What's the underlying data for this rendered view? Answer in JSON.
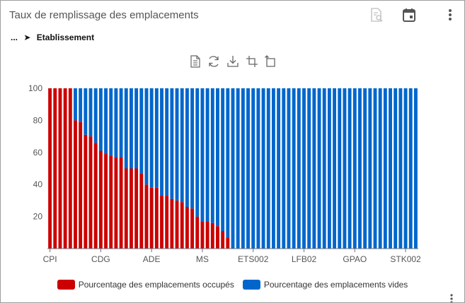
{
  "header": {
    "title": "Taux de remplissage des emplacements",
    "icons": [
      "search-doc-icon",
      "calendar-icon",
      "more-vert-icon"
    ]
  },
  "breadcrumb": {
    "ellipsis": "...",
    "arrow": "➤",
    "current": "Etablissement"
  },
  "toolbox": [
    "data-view-icon",
    "restore-icon",
    "save-image-icon",
    "zoom-icon",
    "zoom-reset-icon"
  ],
  "colors": {
    "occupied": "#cc0000",
    "empty": "#0066cc",
    "disabled_icon": "#c8c8c8",
    "icon": "#555555"
  },
  "legend": {
    "occupied": "Pourcentage des emplacements occupés",
    "empty": "Pourcentage des emplacements vides"
  },
  "chart_data": {
    "type": "bar",
    "stacked": true,
    "ylim": [
      0,
      100
    ],
    "yticks": [
      20,
      40,
      60,
      80,
      100
    ],
    "x_tick_labels": [
      {
        "index": 0,
        "label": "CPI"
      },
      {
        "index": 10,
        "label": "CDG"
      },
      {
        "index": 20,
        "label": "ADE"
      },
      {
        "index": 30,
        "label": "MS"
      },
      {
        "index": 40,
        "label": "ETS002"
      },
      {
        "index": 50,
        "label": "LFB02"
      },
      {
        "index": 60,
        "label": "GPAO"
      },
      {
        "index": 70,
        "label": "STK002"
      }
    ],
    "series": [
      {
        "name": "Pourcentage des emplacements occupés",
        "color": "#cc0000",
        "values": [
          100,
          100,
          100,
          100,
          100,
          80,
          79,
          71,
          70,
          66,
          61,
          59,
          58,
          57,
          57,
          50,
          50,
          50,
          47,
          40,
          38,
          38,
          33,
          33,
          31,
          30,
          29,
          26,
          25,
          20,
          17,
          17,
          16,
          14,
          11,
          7,
          0,
          0,
          0,
          0,
          0,
          0,
          0,
          0,
          0,
          0,
          0,
          0,
          0,
          0,
          0,
          0,
          0,
          0,
          0,
          0,
          0,
          0,
          0,
          0,
          0,
          0,
          0,
          0,
          0,
          0,
          0,
          0,
          0,
          0,
          0,
          0,
          0
        ]
      },
      {
        "name": "Pourcentage des emplacements vides",
        "color": "#0066cc",
        "values": [
          0,
          0,
          0,
          0,
          0,
          20,
          21,
          29,
          30,
          34,
          39,
          41,
          42,
          43,
          43,
          50,
          50,
          50,
          53,
          60,
          62,
          62,
          67,
          67,
          69,
          70,
          71,
          74,
          75,
          80,
          83,
          83,
          84,
          86,
          89,
          93,
          100,
          100,
          100,
          100,
          100,
          100,
          100,
          100,
          100,
          100,
          100,
          100,
          100,
          100,
          100,
          100,
          100,
          100,
          100,
          100,
          100,
          100,
          100,
          100,
          100,
          100,
          100,
          100,
          100,
          100,
          100,
          100,
          100,
          100,
          100,
          100,
          100
        ]
      }
    ]
  }
}
